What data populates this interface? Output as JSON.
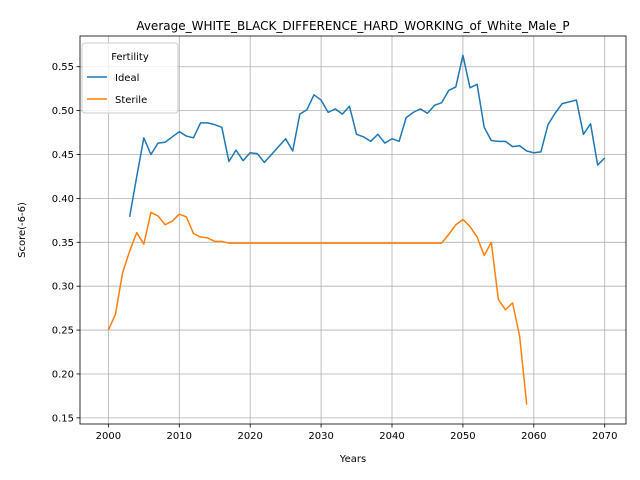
{
  "chart_data": {
    "type": "line",
    "title": "Average_WHITE_BLACK_DIFFERENCE_HARD_WORKING_of_White_Male_P",
    "xlabel": "Years",
    "ylabel": "Score(-6-6)",
    "xlim": [
      1996,
      2073
    ],
    "ylim": [
      0.143,
      0.585
    ],
    "xticks": [
      2000,
      2010,
      2020,
      2030,
      2040,
      2050,
      2060,
      2070
    ],
    "yticks": [
      0.15,
      0.2,
      0.25,
      0.3,
      0.35,
      0.4,
      0.45,
      0.5,
      0.55
    ],
    "grid": true,
    "legend": {
      "title": "Fertility",
      "position": "top-left"
    },
    "series": [
      {
        "name": "Ideal",
        "color": "#1f77b4",
        "x": [
          2003,
          2004,
          2005,
          2006,
          2007,
          2008,
          2009,
          2010,
          2011,
          2012,
          2013,
          2014,
          2015,
          2016,
          2017,
          2018,
          2019,
          2020,
          2021,
          2022,
          2023,
          2024,
          2025,
          2026,
          2027,
          2028,
          2029,
          2030,
          2031,
          2032,
          2033,
          2034,
          2035,
          2036,
          2037,
          2038,
          2039,
          2040,
          2041,
          2042,
          2043,
          2044,
          2045,
          2046,
          2047,
          2048,
          2049,
          2050,
          2051,
          2052,
          2053,
          2054,
          2055,
          2056,
          2057,
          2058,
          2059,
          2060,
          2061,
          2062,
          2063,
          2064,
          2065,
          2066,
          2067,
          2068,
          2069,
          2070
        ],
        "values": [
          0.379,
          0.425,
          0.469,
          0.45,
          0.463,
          0.464,
          0.47,
          0.476,
          0.471,
          0.469,
          0.486,
          0.486,
          0.484,
          0.481,
          0.442,
          0.455,
          0.443,
          0.452,
          0.451,
          0.441,
          0.45,
          0.459,
          0.468,
          0.454,
          0.496,
          0.501,
          0.518,
          0.512,
          0.498,
          0.502,
          0.496,
          0.505,
          0.473,
          0.47,
          0.465,
          0.473,
          0.463,
          0.468,
          0.465,
          0.492,
          0.498,
          0.502,
          0.497,
          0.506,
          0.509,
          0.523,
          0.527,
          0.563,
          0.526,
          0.53,
          0.481,
          0.466,
          0.465,
          0.465,
          0.459,
          0.46,
          0.454,
          0.452,
          0.453,
          0.484,
          0.497,
          0.508,
          0.51,
          0.512,
          0.473,
          0.485,
          0.438,
          0.446
        ]
      },
      {
        "name": "Sterile",
        "color": "#ff7f0e",
        "x": [
          2000,
          2001,
          2002,
          2003,
          2004,
          2005,
          2006,
          2007,
          2008,
          2009,
          2010,
          2011,
          2012,
          2013,
          2014,
          2015,
          2016,
          2017,
          2018,
          2019,
          2020,
          2021,
          2022,
          2023,
          2024,
          2025,
          2026,
          2027,
          2028,
          2029,
          2030,
          2031,
          2032,
          2033,
          2034,
          2035,
          2036,
          2037,
          2038,
          2039,
          2040,
          2041,
          2042,
          2043,
          2044,
          2045,
          2046,
          2047,
          2048,
          2049,
          2050,
          2051,
          2052,
          2053,
          2054,
          2055,
          2056,
          2057,
          2058,
          2059
        ],
        "values": [
          0.25,
          0.268,
          0.315,
          0.34,
          0.361,
          0.348,
          0.384,
          0.38,
          0.37,
          0.374,
          0.382,
          0.379,
          0.36,
          0.356,
          0.355,
          0.351,
          0.351,
          0.349,
          0.349,
          0.349,
          0.349,
          0.349,
          0.349,
          0.349,
          0.349,
          0.349,
          0.349,
          0.349,
          0.349,
          0.349,
          0.349,
          0.349,
          0.349,
          0.349,
          0.349,
          0.349,
          0.349,
          0.349,
          0.349,
          0.349,
          0.349,
          0.349,
          0.349,
          0.349,
          0.349,
          0.349,
          0.349,
          0.349,
          0.359,
          0.37,
          0.376,
          0.368,
          0.356,
          0.335,
          0.35,
          0.285,
          0.273,
          0.281,
          0.243,
          0.165
        ]
      }
    ]
  }
}
